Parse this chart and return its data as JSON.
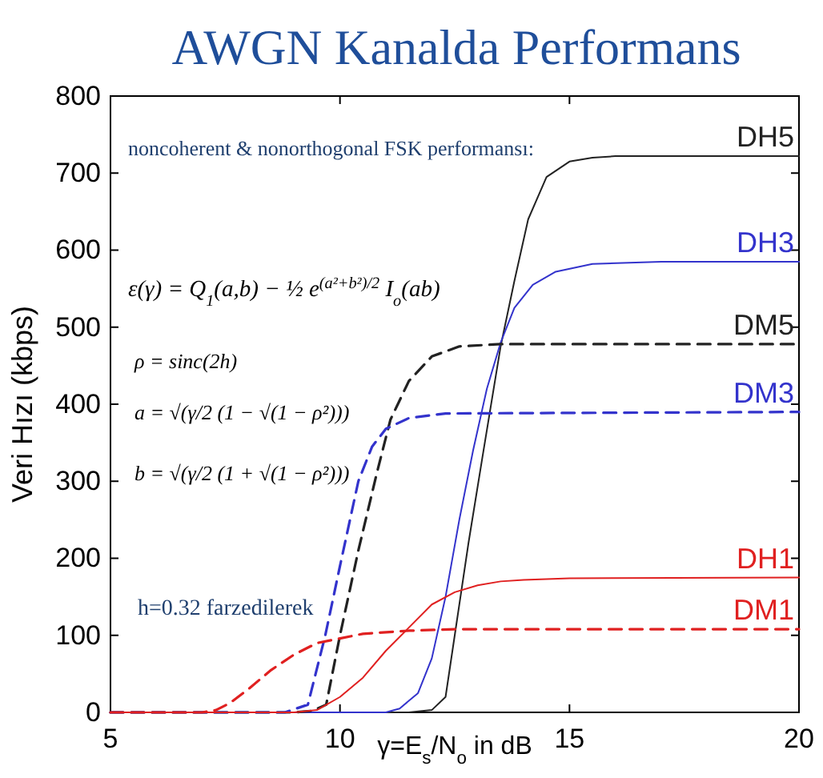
{
  "chart_data": {
    "type": "line",
    "title": "AWGN Kanalda Performans",
    "xlabel": "γ=E$_{s}$/N$_{o}$ in dB",
    "ylabel": "Veri Hızı (kbps)",
    "xlim": [
      5,
      20
    ],
    "xticks": [
      5,
      10,
      15,
      20
    ],
    "ylim": [
      0,
      800
    ],
    "yticks": [
      0,
      100,
      200,
      300,
      400,
      500,
      600,
      700,
      800
    ],
    "grid": false,
    "legend": false,
    "marker": "none",
    "series": [
      {
        "name": "DH5",
        "color": "#222222",
        "line_style": "solid",
        "x": [
          5,
          11.5,
          12,
          12.3,
          12.5,
          12.8,
          13.1,
          13.5,
          13.8,
          14.1,
          14.5,
          15,
          15.5,
          16,
          20
        ],
        "values": [
          0,
          0,
          3,
          20,
          100,
          220,
          330,
          475,
          560,
          640,
          695,
          715,
          720,
          722,
          722
        ]
      },
      {
        "name": "DH3",
        "color": "#3333cc",
        "line_style": "solid",
        "x": [
          5,
          11,
          11.3,
          11.7,
          12,
          12.3,
          12.6,
          12.9,
          13.2,
          13.5,
          13.8,
          14.2,
          14.7,
          15.5,
          17,
          20
        ],
        "values": [
          0,
          0,
          5,
          25,
          70,
          150,
          250,
          340,
          420,
          480,
          525,
          555,
          572,
          582,
          585,
          585
        ]
      },
      {
        "name": "DM5",
        "color": "#222222",
        "line_style": "dashed",
        "x": [
          5,
          9,
          9.4,
          9.7,
          10,
          10.4,
          10.8,
          11.1,
          11.5,
          12,
          12.6,
          13.5,
          20
        ],
        "values": [
          0,
          0,
          2,
          10,
          100,
          210,
          310,
          380,
          430,
          462,
          475,
          478,
          478
        ]
      },
      {
        "name": "DM3",
        "color": "#3333cc",
        "line_style": "dashed",
        "x": [
          5,
          8.8,
          9.3,
          9.68,
          10,
          10.4,
          10.7,
          11,
          11.5,
          12.3,
          20
        ],
        "values": [
          0,
          0,
          10,
          100,
          190,
          300,
          345,
          368,
          382,
          388,
          390
        ]
      },
      {
        "name": "DH1",
        "color": "#e02020",
        "line_style": "solid",
        "x": [
          5,
          9,
          9.5,
          10,
          10.5,
          11,
          11.5,
          12,
          12.5,
          13,
          13.5,
          14,
          15,
          20
        ],
        "values": [
          0,
          0,
          3,
          20,
          45,
          80,
          110,
          140,
          156,
          165,
          170,
          172,
          174,
          175
        ]
      },
      {
        "name": "DM1",
        "color": "#e02020",
        "line_style": "dashed",
        "x": [
          5,
          7,
          7.3,
          7.6,
          8,
          8.5,
          9,
          9.5,
          10,
          10.5,
          11.5,
          12.5,
          20
        ],
        "values": [
          0,
          0,
          3,
          12,
          30,
          55,
          75,
          90,
          96,
          102,
          106,
          108,
          108
        ]
      }
    ],
    "annotations": [
      "noncoherent & nonorthogonal FSK performansı:",
      "ε(γ) = Q$_{1}$(a,b) − ½ e$^{(a²+b²)/2}$ I$_{o}$(ab)",
      "ρ = sinc(2h)",
      "a = √(γ/2 (1 − √(1 − ρ²)))",
      "b = √(γ/2 (1 + √(1 − ρ²)))",
      "h=0.32 farzedilerek"
    ]
  }
}
